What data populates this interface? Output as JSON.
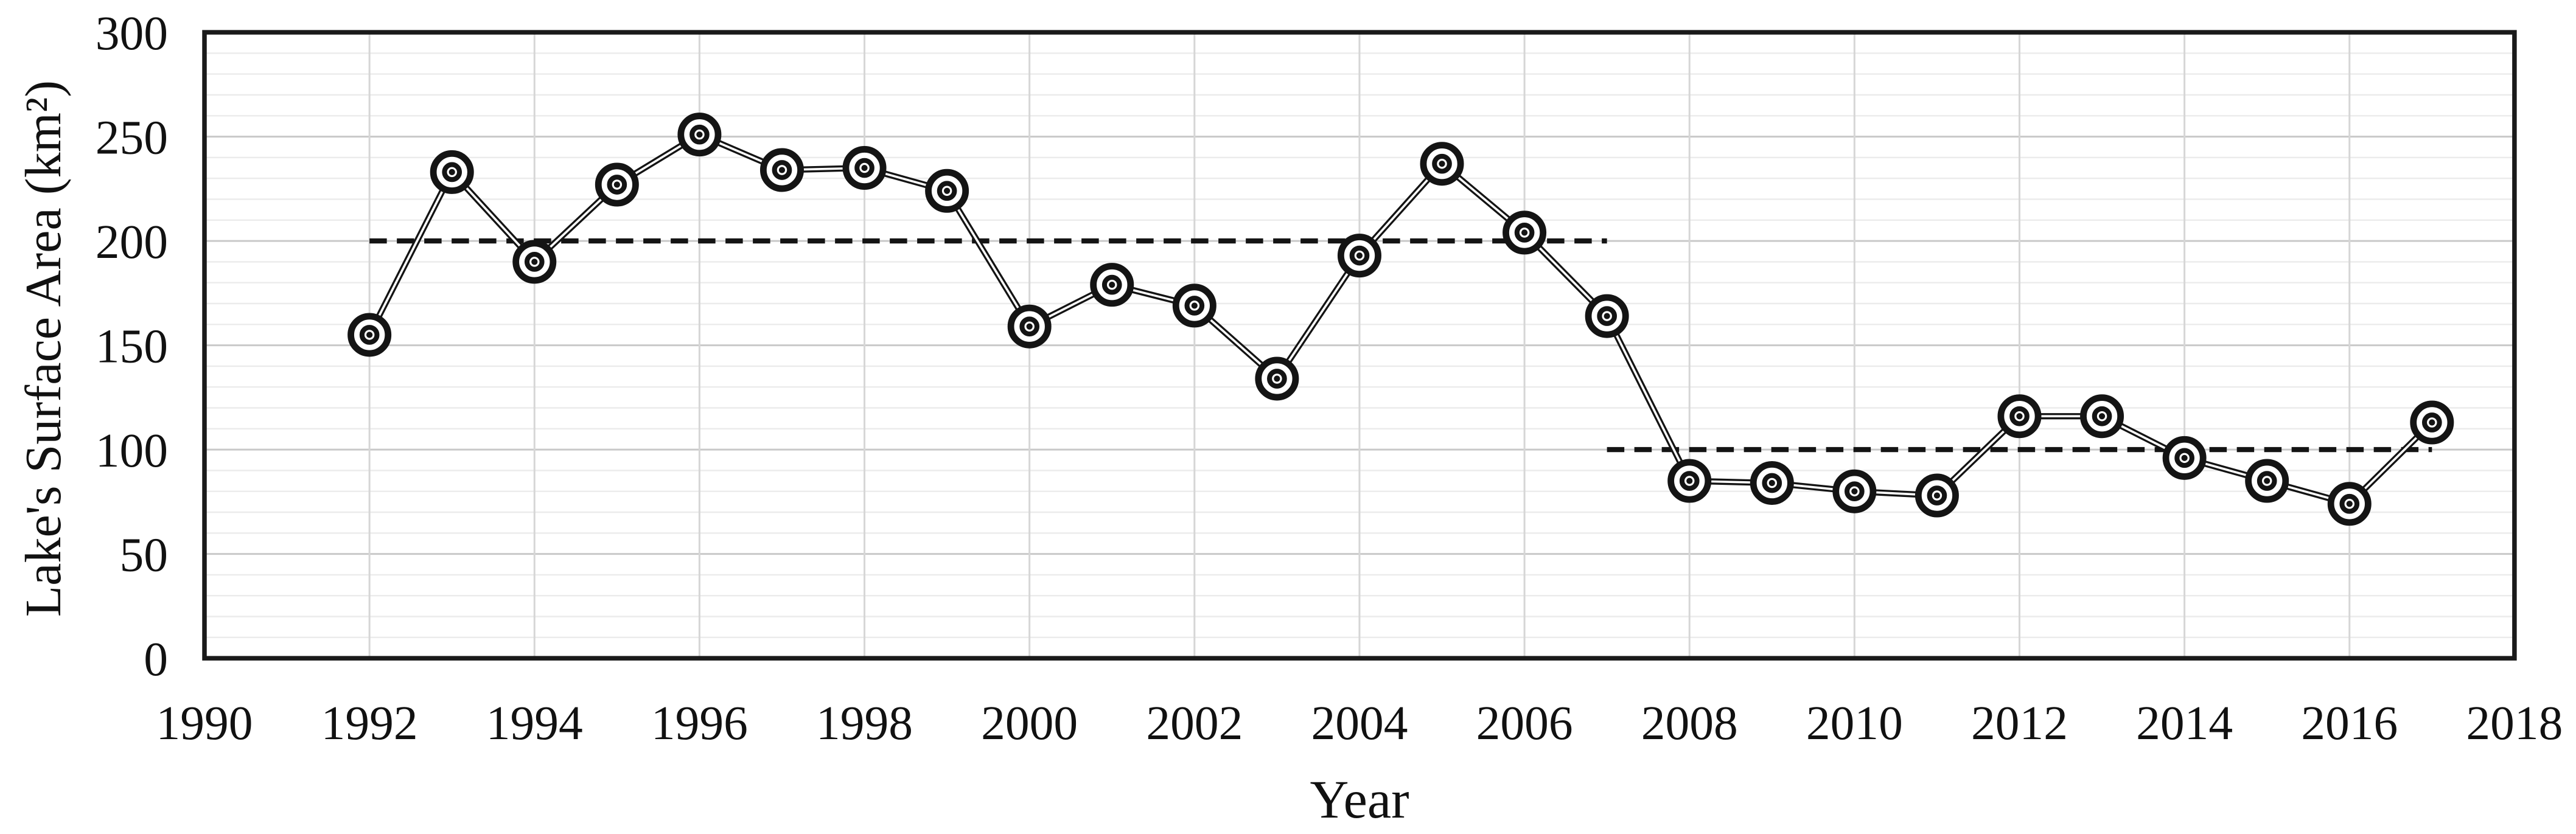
{
  "chart_data": {
    "type": "line",
    "title": "",
    "xlabel": "Year",
    "ylabel": "Lake's Surface Area (km²)",
    "x": [
      1992,
      1993,
      1994,
      1995,
      1996,
      1997,
      1998,
      1999,
      2000,
      2001,
      2002,
      2003,
      2004,
      2005,
      2006,
      2007,
      2008,
      2009,
      2010,
      2011,
      2012,
      2013,
      2014,
      2015,
      2016,
      2017
    ],
    "series": [
      {
        "name": "Lake's surface area",
        "values": [
          155,
          233,
          190,
          227,
          251,
          234,
          235,
          224,
          159,
          179,
          169,
          134,
          193,
          237,
          204,
          164,
          85,
          84,
          80,
          78,
          116,
          116,
          96,
          85,
          74,
          113
        ]
      }
    ],
    "reference_lines": [
      {
        "value": 200,
        "x_start": 1992,
        "x_end": 2007,
        "style": "dashed"
      },
      {
        "value": 100,
        "x_start": 2007,
        "x_end": 2017,
        "style": "dashed"
      }
    ],
    "xlim": [
      1990,
      2018
    ],
    "ylim": [
      0,
      300
    ],
    "x_ticks": [
      1990,
      1992,
      1994,
      1996,
      1998,
      2000,
      2002,
      2004,
      2006,
      2008,
      2010,
      2012,
      2014,
      2016,
      2018
    ],
    "y_ticks": [
      0,
      50,
      100,
      150,
      200,
      250,
      300
    ],
    "y_minor_step": 10,
    "grid": true,
    "legend_position": "none",
    "marker_style": "bullseye",
    "colors": {
      "line": "#141414",
      "line_core": "#ffffff",
      "marker_fill": "#ffffff",
      "reference": "#141414",
      "border": "#1a1a1a",
      "grid_major": "#c9c9c9",
      "grid_minor": "#ebebeb",
      "grid_vertical": "#d6d6d6",
      "background": "#ffffff",
      "text": "#111111"
    }
  }
}
